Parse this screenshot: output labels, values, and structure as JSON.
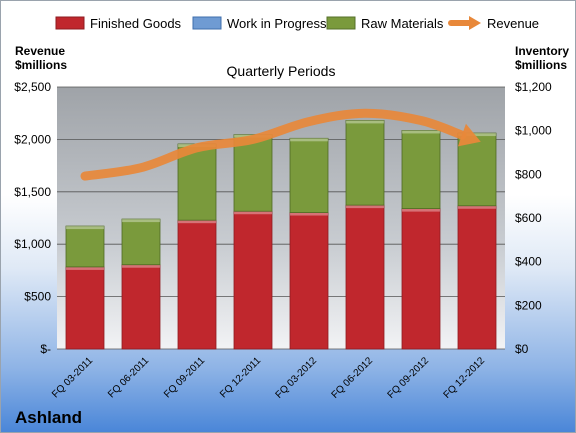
{
  "chart_data": {
    "type": "bar",
    "subtitle": "Quarterly Periods",
    "company": "Ashland",
    "categories": [
      "FQ 03-2011",
      "FQ 06-2011",
      "FQ 09-2011",
      "FQ 12-2011",
      "FQ 03-2012",
      "FQ 06-2012",
      "FQ 09-2012",
      "FQ 12-2012"
    ],
    "series": [
      {
        "name": "Finished Goods",
        "axis": "right",
        "color": "#c0272d",
        "values": [
          376,
          386,
          590,
          631,
          625,
          659,
          643,
          656
        ]
      },
      {
        "name": "Work in Progress",
        "axis": "right",
        "color": "#6f9bd3",
        "values": [
          0,
          0,
          0,
          0,
          0,
          0,
          0,
          0
        ]
      },
      {
        "name": "Raw Materials",
        "axis": "right",
        "color": "#7a9a3c",
        "values": [
          187,
          209,
          349,
          351,
          340,
          388,
          358,
          333
        ]
      },
      {
        "name": "Revenue",
        "axis": "left",
        "type": "line",
        "color": "#e8883a",
        "values": [
          1650,
          1730,
          1920,
          2000,
          2170,
          2250,
          2180,
          1990
        ]
      }
    ],
    "y_left": {
      "title_line1": "Revenue",
      "title_line2": "$millions",
      "ylim": [
        0,
        2500
      ],
      "ticks": [
        {
          "v": 0,
          "label": "$-"
        },
        {
          "v": 500,
          "label": "$500"
        },
        {
          "v": 1000,
          "label": "$1,000"
        },
        {
          "v": 1500,
          "label": "$1,500"
        },
        {
          "v": 2000,
          "label": "$2,000"
        },
        {
          "v": 2500,
          "label": "$2,500"
        }
      ]
    },
    "y_right": {
      "title_line1": "Inventory",
      "title_line2": "$millions",
      "ylim": [
        0,
        1200
      ],
      "ticks": [
        {
          "v": 0,
          "label": "$0"
        },
        {
          "v": 200,
          "label": "$200"
        },
        {
          "v": 400,
          "label": "$400"
        },
        {
          "v": 600,
          "label": "$600"
        },
        {
          "v": 800,
          "label": "$800"
        },
        {
          "v": 1000,
          "label": "$1,000"
        },
        {
          "v": 1200,
          "label": "$1,200"
        }
      ]
    },
    "legend": "top",
    "grid": true
  }
}
